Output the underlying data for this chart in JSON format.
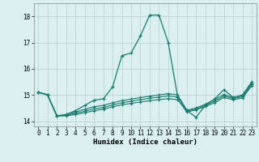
{
  "xlabel": "Humidex (Indice chaleur)",
  "background_color": "#daf0f0",
  "grid_color": "#c0d8d8",
  "line_color": "#1a7a6e",
  "x_values": [
    0,
    1,
    2,
    3,
    4,
    5,
    6,
    7,
    8,
    9,
    10,
    11,
    12,
    13,
    14,
    15,
    16,
    17,
    18,
    19,
    20,
    21,
    22,
    23
  ],
  "series_main": [
    15.1,
    15.0,
    14.2,
    14.25,
    14.4,
    14.6,
    14.8,
    14.85,
    15.3,
    16.5,
    16.6,
    17.25,
    18.05,
    18.05,
    17.0,
    14.95,
    14.4,
    14.15,
    14.6,
    14.85,
    15.2,
    14.9,
    15.0,
    15.5
  ],
  "series_b": [
    15.1,
    15.0,
    14.2,
    14.25,
    14.35,
    14.45,
    14.55,
    14.6,
    14.7,
    14.78,
    14.84,
    14.9,
    14.95,
    15.0,
    15.05,
    15.0,
    14.42,
    14.5,
    14.65,
    14.82,
    15.02,
    14.9,
    14.97,
    15.45
  ],
  "series_c": [
    15.1,
    15.0,
    14.2,
    14.22,
    14.3,
    14.38,
    14.47,
    14.52,
    14.62,
    14.7,
    14.76,
    14.82,
    14.87,
    14.92,
    14.96,
    14.92,
    14.38,
    14.46,
    14.6,
    14.76,
    14.96,
    14.86,
    14.93,
    15.4
  ],
  "series_d": [
    15.1,
    15.0,
    14.2,
    14.2,
    14.25,
    14.32,
    14.4,
    14.45,
    14.55,
    14.62,
    14.68,
    14.73,
    14.78,
    14.82,
    14.86,
    14.82,
    14.35,
    14.43,
    14.56,
    14.7,
    14.9,
    14.82,
    14.88,
    15.35
  ],
  "ylim": [
    13.8,
    18.5
  ],
  "xlim": [
    -0.5,
    23.5
  ],
  "yticks": [
    14,
    15,
    16,
    17,
    18
  ],
  "xticks": [
    0,
    1,
    2,
    3,
    4,
    5,
    6,
    7,
    8,
    9,
    10,
    11,
    12,
    13,
    14,
    15,
    16,
    17,
    18,
    19,
    20,
    21,
    22,
    23
  ]
}
